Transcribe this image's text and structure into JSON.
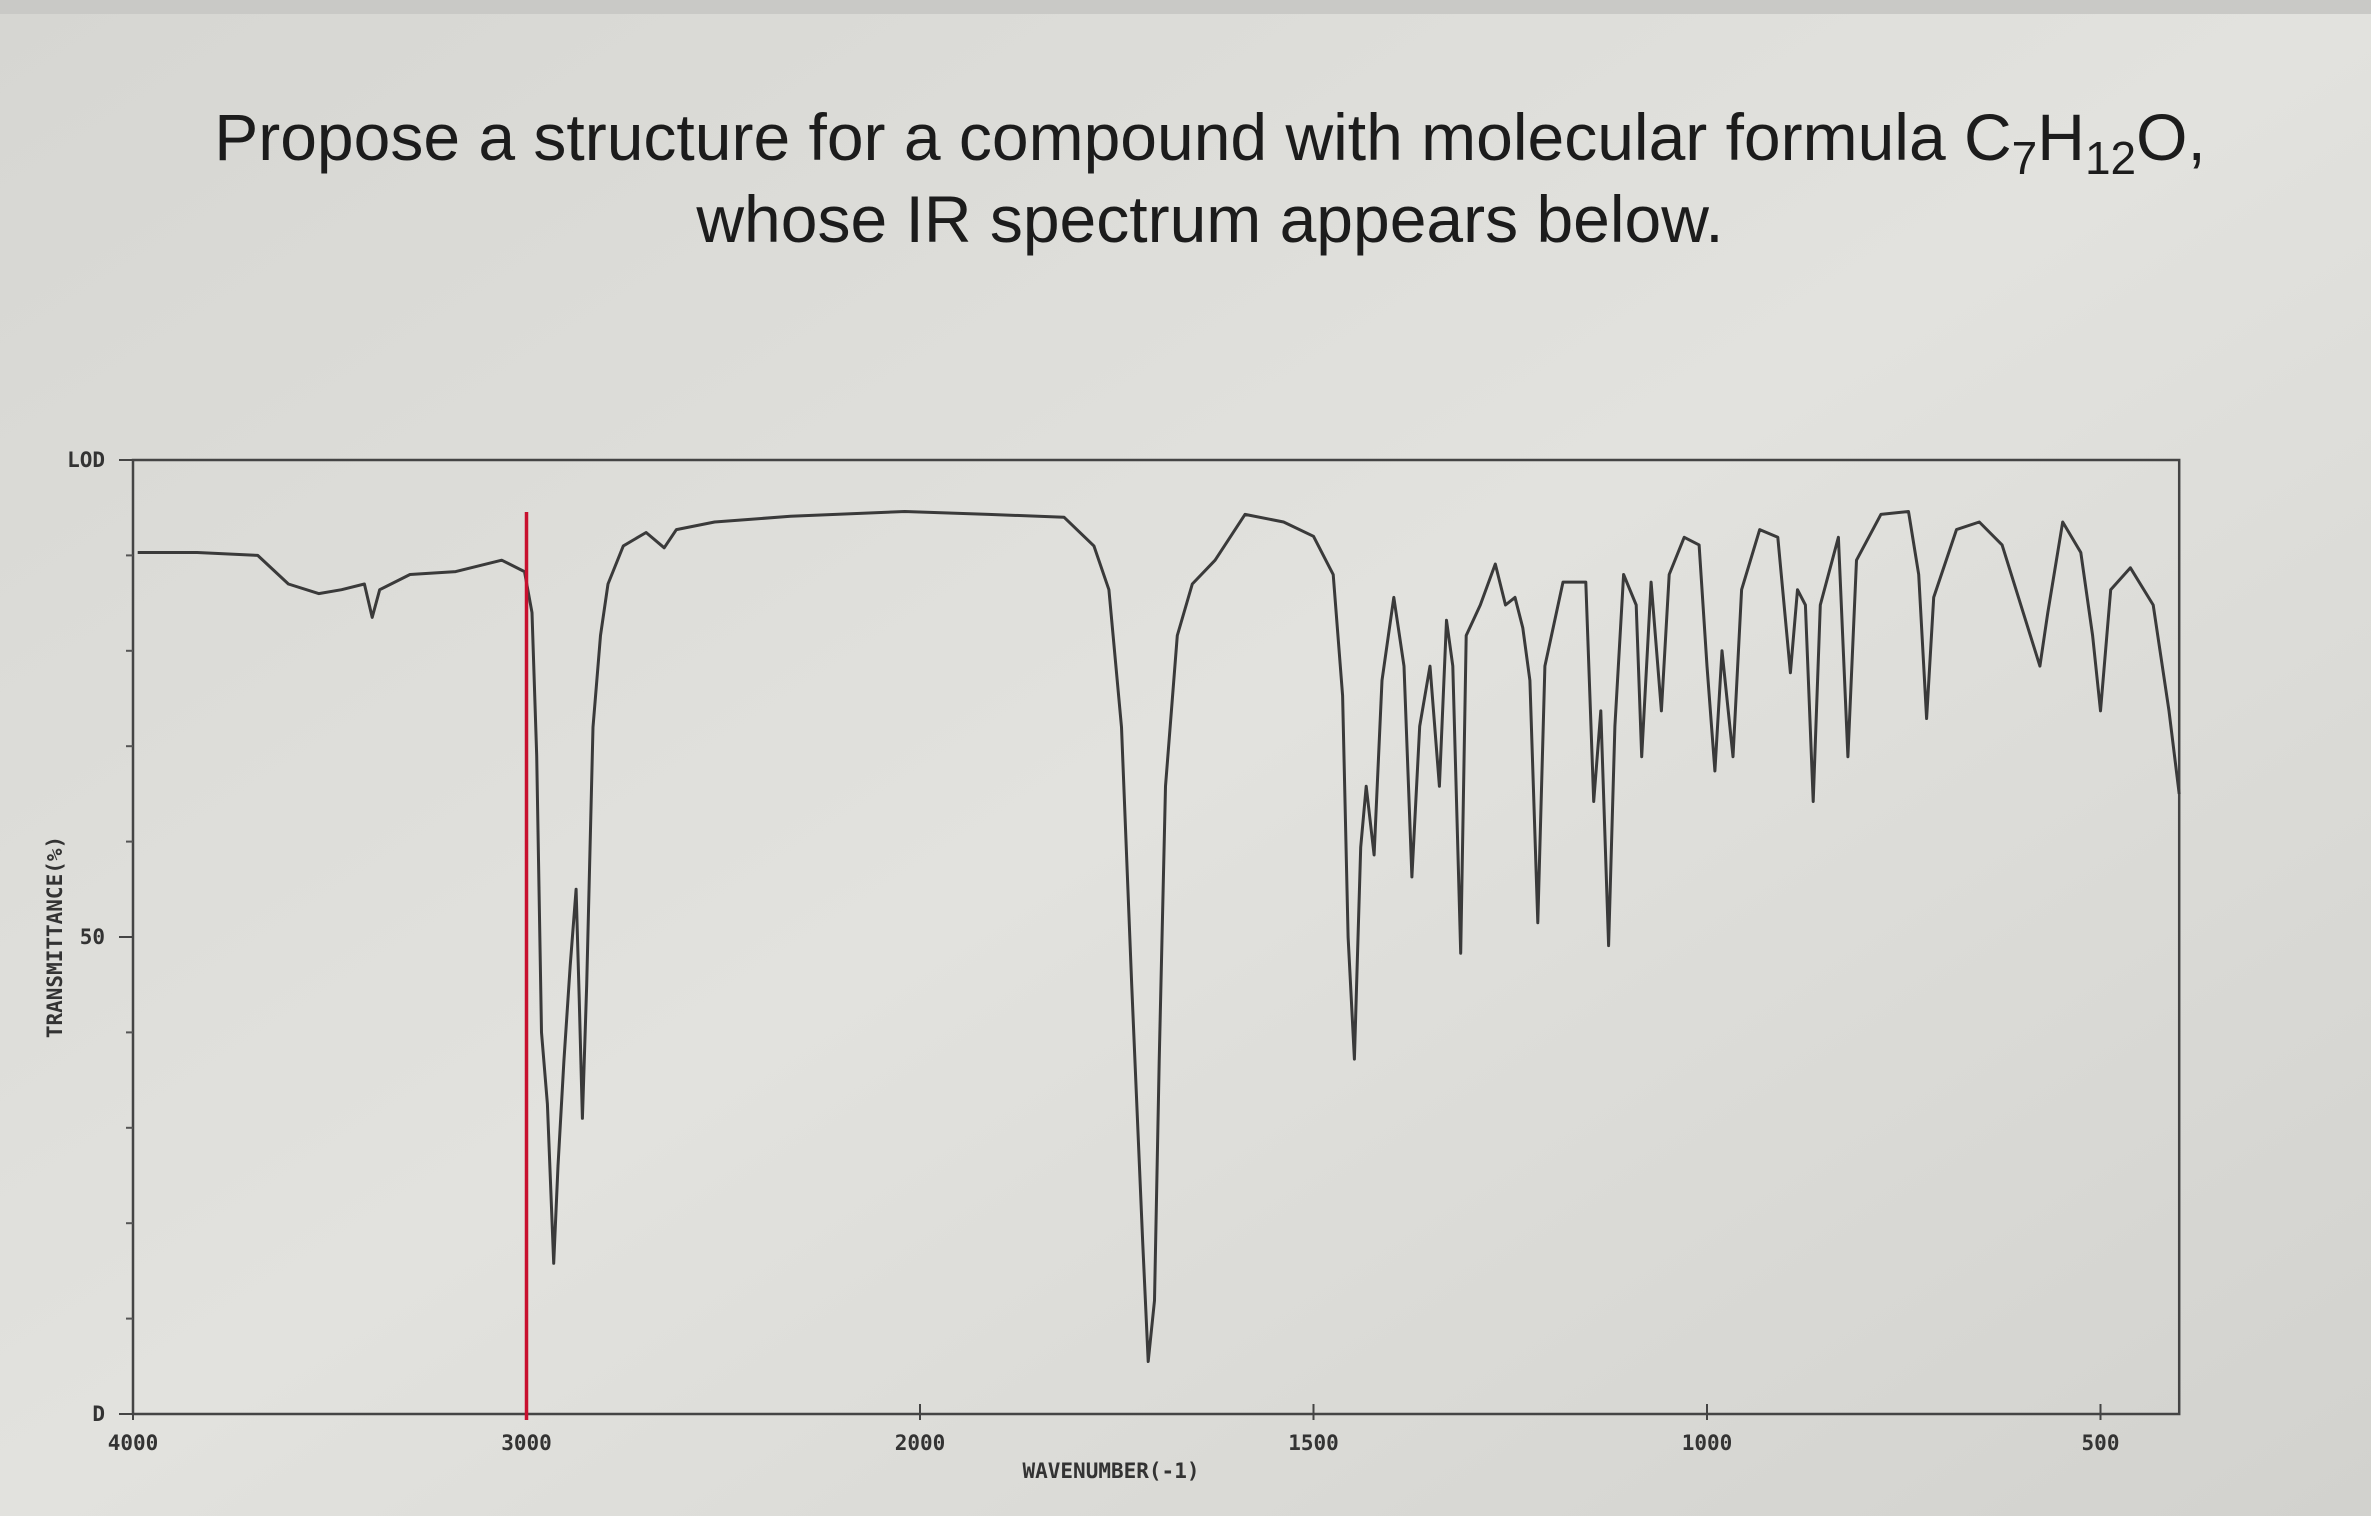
{
  "chart_data": {
    "type": "line",
    "title": [
      "Propose a structure for a compound with molecular formula C",
      "7",
      "H",
      "12",
      "O,",
      "whose IR spectrum appears below."
    ],
    "x_label": "WAVENUMBER(-1)",
    "y_label": "TRANSMITTANCE(%)",
    "xlim": [
      4000,
      400
    ],
    "xticks": [
      4000,
      3000,
      2000,
      1500,
      1000,
      500
    ],
    "ylim": [
      0,
      100
    ],
    "yticks": [
      {
        "value": 0,
        "label": "D"
      },
      50,
      {
        "value": 100,
        "label": "LOD"
      }
    ],
    "y_minor_ticks": [
      10,
      20,
      30,
      40,
      60,
      70,
      80,
      90
    ],
    "marker_line": {
      "x": 3000,
      "color": "#c8102e"
    },
    "series": [
      {
        "color": "#3a3a3a",
        "x": [
          3988,
          3837,
          3683,
          3605,
          3528,
          3470,
          3412,
          3392,
          3373,
          3296,
          3180,
          3063,
          3005,
          2986,
          2974,
          2962,
          2947,
          2931,
          2920,
          2905,
          2889,
          2874,
          2866,
          2858,
          2847,
          2831,
          2812,
          2793,
          2754,
          2696,
          2650,
          2619,
          2522,
          2329,
          2039,
          1913,
          1817,
          1779,
          1760,
          1744,
          1731,
          1717,
          1710,
          1702,
          1696,
          1688,
          1673,
          1654,
          1625,
          1587,
          1538,
          1500,
          1475,
          1463,
          1456,
          1448,
          1440,
          1433,
          1423,
          1413,
          1398,
          1385,
          1375,
          1365,
          1352,
          1340,
          1331,
          1323,
          1313,
          1306,
          1288,
          1269,
          1256,
          1244,
          1234,
          1225,
          1215,
          1206,
          1183,
          1154,
          1144,
          1135,
          1125,
          1117,
          1106,
          1090,
          1083,
          1071,
          1058,
          1048,
          1029,
          1010,
          1000,
          990,
          981,
          967,
          956,
          933,
          910,
          894,
          885,
          875,
          865,
          856,
          833,
          821,
          810,
          779,
          744,
          731,
          721,
          712,
          683,
          654,
          625,
          577,
          567,
          548,
          525,
          510,
          500,
          487,
          462,
          433,
          413,
          400
        ],
        "values": [
          90.3,
          90.3,
          90,
          87,
          86,
          86.4,
          87,
          83.5,
          86.4,
          88,
          88.3,
          89.5,
          88.3,
          84,
          69,
          40,
          32.5,
          15.8,
          26,
          37,
          47,
          55,
          43.6,
          31,
          45,
          72,
          81.6,
          87,
          91,
          92.4,
          90.8,
          92.7,
          93.5,
          94.1,
          94.6,
          94.3,
          94,
          91,
          86.4,
          72,
          45,
          18,
          5.5,
          11.9,
          37,
          65.8,
          81.6,
          87,
          89.5,
          94.3,
          93.5,
          92,
          88,
          75.3,
          50,
          37.2,
          59.4,
          65.8,
          58.6,
          76.9,
          85.6,
          78.4,
          56.3,
          72.1,
          78.4,
          65.8,
          83.2,
          78.4,
          48.3,
          81.6,
          84.8,
          89.1,
          84.8,
          85.6,
          82.4,
          76.9,
          51.5,
          78.4,
          87.2,
          87.2,
          64.2,
          73.7,
          49.1,
          72.1,
          88,
          84.8,
          68.9,
          87.2,
          73.7,
          88,
          91.9,
          91.1,
          78.4,
          67.4,
          80,
          68.9,
          86.4,
          92.7,
          91.9,
          77.7,
          86.4,
          84.8,
          64.2,
          84.8,
          91.9,
          68.9,
          89.5,
          94.3,
          94.6,
          88,
          72.9,
          85.6,
          92.7,
          93.5,
          91.1,
          78.4,
          84,
          93.5,
          90.3,
          81.6,
          73.7,
          86.4,
          88.7,
          84.8,
          73.7,
          65
        ]
      }
    ]
  }
}
